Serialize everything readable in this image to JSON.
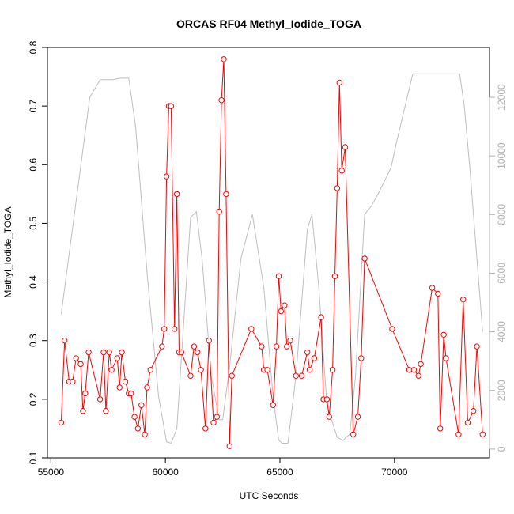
{
  "chart_data": {
    "type": "line",
    "title": "ORCAS RF04 Methyl_Iodide_TOGA",
    "xlabel": "UTC Seconds",
    "ylabel": "Methyl_Iodide_TOGA",
    "xlim": [
      54850,
      74150
    ],
    "ylim": [
      0.1,
      0.8
    ],
    "y2lim": [
      -300,
      13700
    ],
    "x_ticks": [
      55000,
      60000,
      65000,
      70000
    ],
    "y_ticks": [
      0.1,
      0.2,
      0.3,
      0.4,
      0.5,
      0.6,
      0.7,
      0.8
    ],
    "y2_ticks": [
      0,
      2000,
      4000,
      6000,
      8000,
      10000,
      12000
    ],
    "grid": false,
    "colors": {
      "primary": "#ff0000",
      "secondary": "#bebebe",
      "axis": "#000000",
      "right_axis": "#b0b0b0"
    },
    "series": [
      {
        "role": "primary",
        "color": "#ff0000",
        "marker": "open-circle",
        "x": [
          55450,
          55600,
          55800,
          55950,
          56100,
          56300,
          56400,
          56500,
          56650,
          57150,
          57300,
          57400,
          57550,
          57650,
          57900,
          58000,
          58100,
          58250,
          58400,
          58500,
          58650,
          58800,
          58950,
          59100,
          59200,
          59350,
          59850,
          59950,
          60050,
          60150,
          60250,
          60400,
          60500,
          60600,
          60700,
          61100,
          61250,
          61400,
          61550,
          61750,
          61900,
          62100,
          62250,
          62350,
          62450,
          62550,
          62650,
          62800,
          62900,
          63750,
          64200,
          64300,
          64450,
          64700,
          64850,
          64950,
          65050,
          65200,
          65300,
          65450,
          65700,
          65950,
          66200,
          66300,
          66500,
          66800,
          66900,
          67050,
          67150,
          67300,
          67400,
          67500,
          67600,
          67700,
          67850,
          68200,
          68400,
          68550,
          68700,
          69900,
          70650,
          70850,
          71050,
          71150,
          71650,
          71900,
          72000,
          72150,
          72250,
          72800,
          73000,
          73200,
          73450,
          73600,
          73850
        ],
        "y": [
          0.16,
          0.3,
          0.23,
          0.23,
          0.27,
          0.26,
          0.18,
          0.21,
          0.28,
          0.2,
          0.28,
          0.18,
          0.28,
          0.25,
          0.27,
          0.22,
          0.28,
          0.23,
          0.21,
          0.21,
          0.17,
          0.15,
          0.19,
          0.14,
          0.22,
          0.25,
          0.29,
          0.32,
          0.58,
          0.7,
          0.7,
          0.32,
          0.55,
          0.28,
          0.28,
          0.24,
          0.29,
          0.28,
          0.25,
          0.15,
          0.3,
          0.16,
          0.17,
          0.52,
          0.71,
          0.78,
          0.55,
          0.12,
          0.24,
          0.32,
          0.29,
          0.25,
          0.25,
          0.19,
          0.29,
          0.41,
          0.35,
          0.36,
          0.29,
          0.3,
          0.24,
          0.24,
          0.28,
          0.25,
          0.27,
          0.34,
          0.2,
          0.2,
          0.17,
          0.25,
          0.41,
          0.56,
          0.74,
          0.59,
          0.63,
          0.14,
          0.17,
          0.27,
          0.44,
          0.32,
          0.25,
          0.25,
          0.24,
          0.26,
          0.39,
          0.38,
          0.15,
          0.31,
          0.27,
          0.14,
          0.37,
          0.16,
          0.18,
          0.29,
          0.14
        ]
      },
      {
        "role": "secondary",
        "color": "#bebebe",
        "marker": "none",
        "x": [
          55450,
          56700,
          57150,
          57700,
          58050,
          58400,
          58700,
          59200,
          59700,
          60050,
          60250,
          60500,
          61100,
          61350,
          61600,
          62000,
          62350,
          62500,
          62800,
          63300,
          63800,
          64300,
          64700,
          64950,
          65100,
          65350,
          65700,
          66200,
          66400,
          66700,
          67050,
          67500,
          67750,
          68050,
          68300,
          68700,
          69000,
          69350,
          69850,
          70100,
          70800,
          72300,
          72850,
          73050,
          73300,
          73850
        ],
        "y": [
          4600,
          12000,
          12600,
          12600,
          12650,
          12650,
          11000,
          6000,
          1800,
          250,
          200,
          700,
          7900,
          8100,
          6500,
          2500,
          1000,
          1000,
          2800,
          6500,
          8000,
          5500,
          1800,
          300,
          200,
          200,
          2500,
          7500,
          8000,
          5500,
          1500,
          400,
          300,
          500,
          2500,
          8000,
          8300,
          8800,
          9600,
          10500,
          12800,
          12800,
          12800,
          11700,
          9500,
          4000
        ]
      }
    ]
  }
}
